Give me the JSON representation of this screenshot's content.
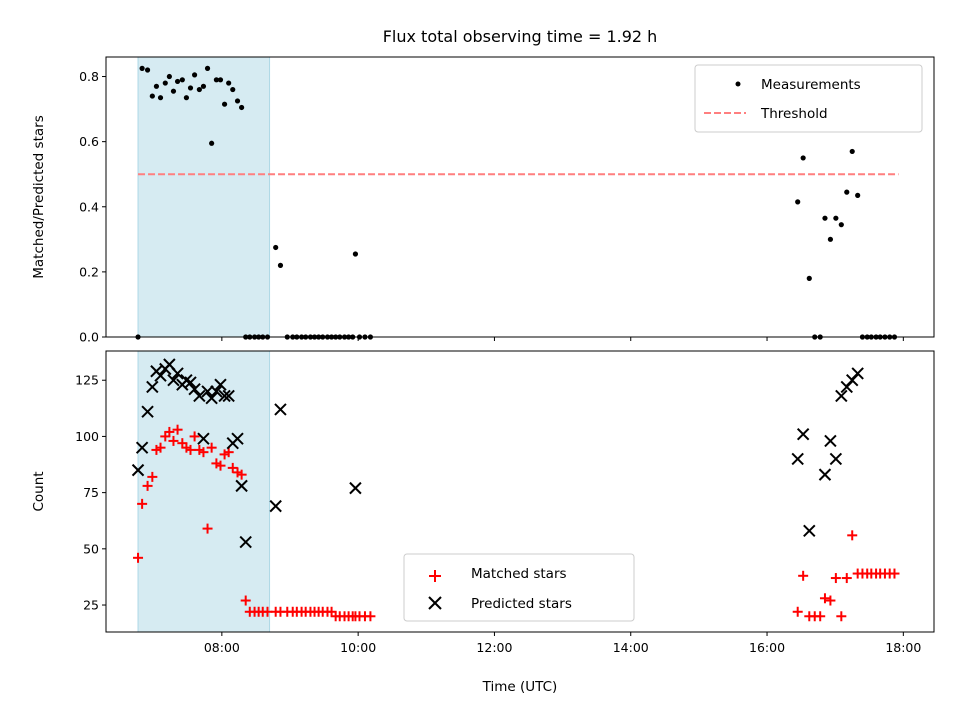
{
  "chart_data": {
    "title": "Flux total observing time = 1.92 h",
    "xlabel": "Time (UTC)",
    "x_ticks": [
      "08:00",
      "10:00",
      "12:00",
      "14:00",
      "16:00",
      "18:00"
    ],
    "x_unit": "hours (UTC)",
    "xlim": [
      6.3,
      18.45
    ],
    "highlight_span": {
      "x0": 6.77,
      "x1": 8.7,
      "color": "#add8e6"
    },
    "panels": [
      {
        "type": "scatter",
        "ylabel": "Matched/Predicted stars",
        "ylim": [
          0,
          0.86
        ],
        "y_ticks": [
          0.0,
          0.2,
          0.4,
          0.6,
          0.8
        ],
        "y_tick_labels": [
          "0.0",
          "0.2",
          "0.4",
          "0.6",
          "0.8"
        ],
        "legend_position": "top-right",
        "series": [
          {
            "name": "Measurements",
            "marker": "dot",
            "color": "#000000",
            "x": [
              6.77,
              6.83,
              6.91,
              6.98,
              7.04,
              7.1,
              7.17,
              7.23,
              7.29,
              7.35,
              7.42,
              7.48,
              7.54,
              7.6,
              7.67,
              7.73,
              7.79,
              7.85,
              7.92,
              7.98,
              8.04,
              8.1,
              8.16,
              8.23,
              8.29,
              8.35,
              8.41,
              8.48,
              8.54,
              8.6,
              8.67,
              8.79,
              8.86,
              8.96,
              9.04,
              9.1,
              9.17,
              9.23,
              9.3,
              9.36,
              9.42,
              9.48,
              9.55,
              9.61,
              9.67,
              9.73,
              9.8,
              9.86,
              9.92,
              9.96,
              10.02,
              10.1,
              10.18,
              16.45,
              16.53,
              16.62,
              16.7,
              16.78,
              16.85,
              16.93,
              17.01,
              17.09,
              17.17,
              17.25,
              17.33,
              17.4,
              17.47,
              17.53,
              17.6,
              17.66,
              17.73,
              17.8,
              17.87
            ],
            "y": [
              0.0,
              0.825,
              0.82,
              0.74,
              0.77,
              0.735,
              0.78,
              0.8,
              0.755,
              0.785,
              0.79,
              0.735,
              0.765,
              0.805,
              0.76,
              0.77,
              0.825,
              0.595,
              0.79,
              0.79,
              0.715,
              0.78,
              0.76,
              0.725,
              0.705,
              0.0,
              0.0,
              0.0,
              0.0,
              0.0,
              0.0,
              0.275,
              0.22,
              0.0,
              0.0,
              0.0,
              0.0,
              0.0,
              0.0,
              0.0,
              0.0,
              0.0,
              0.0,
              0.0,
              0.0,
              0.0,
              0.0,
              0.0,
              0.0,
              0.255,
              0.0,
              0.0,
              0.0,
              0.415,
              0.55,
              0.18,
              0.0,
              0.0,
              0.365,
              0.3,
              0.365,
              0.345,
              0.445,
              0.57,
              0.435,
              0.0,
              0.0,
              0.0,
              0.0,
              0.0,
              0.0,
              0.0,
              0.0
            ]
          }
        ],
        "threshold": {
          "name": "Threshold",
          "y": 0.5,
          "x0": 6.77,
          "x1": 17.93,
          "color": "#ff7f7f"
        }
      },
      {
        "type": "scatter",
        "ylabel": "Count",
        "ylim": [
          13,
          138
        ],
        "y_ticks": [
          25,
          50,
          75,
          100,
          125
        ],
        "y_tick_labels": [
          "25",
          "50",
          "75",
          "100",
          "125"
        ],
        "legend_position": "bottom-center",
        "series": [
          {
            "name": "Matched stars",
            "marker": "plus",
            "color": "#ff0000",
            "x": [
              6.77,
              6.83,
              6.91,
              6.98,
              7.04,
              7.1,
              7.17,
              7.23,
              7.29,
              7.35,
              7.42,
              7.48,
              7.54,
              7.6,
              7.67,
              7.73,
              7.79,
              7.85,
              7.92,
              7.98,
              8.04,
              8.1,
              8.16,
              8.23,
              8.29,
              8.35,
              8.41,
              8.48,
              8.54,
              8.6,
              8.67,
              8.79,
              8.86,
              8.96,
              9.04,
              9.1,
              9.17,
              9.23,
              9.3,
              9.36,
              9.42,
              9.48,
              9.55,
              9.61,
              9.67,
              9.73,
              9.8,
              9.86,
              9.92,
              9.96,
              10.02,
              10.1,
              10.18,
              16.45,
              16.53,
              16.62,
              16.7,
              16.78,
              16.85,
              16.93,
              17.01,
              17.09,
              17.17,
              17.25,
              17.33,
              17.4,
              17.47,
              17.53,
              17.6,
              17.66,
              17.73,
              17.8,
              17.87
            ],
            "y": [
              46,
              70,
              78,
              82,
              94,
              95,
              100,
              102,
              98,
              103,
              97,
              95,
              94,
              100,
              94,
              93,
              59,
              95,
              88,
              87,
              92,
              93,
              86,
              84,
              83,
              27,
              22,
              22,
              22,
              22,
              22,
              22,
              22,
              22,
              22,
              22,
              22,
              22,
              22,
              22,
              22,
              22,
              22,
              22,
              20,
              20,
              20,
              20,
              20,
              20,
              20,
              20,
              20,
              22,
              38,
              20,
              20,
              20,
              28,
              27,
              37,
              20,
              37,
              56,
              39,
              39,
              39,
              39,
              39,
              39,
              39,
              39,
              39
            ]
          },
          {
            "name": "Predicted stars",
            "marker": "x",
            "color": "#000000",
            "x": [
              6.77,
              6.83,
              6.91,
              6.98,
              7.04,
              7.1,
              7.17,
              7.23,
              7.29,
              7.35,
              7.42,
              7.48,
              7.54,
              7.6,
              7.67,
              7.73,
              7.79,
              7.85,
              7.92,
              7.98,
              8.04,
              8.1,
              8.16,
              8.23,
              8.29,
              8.35,
              8.79,
              8.86,
              9.96,
              16.45,
              16.53,
              16.62,
              16.85,
              16.93,
              17.01,
              17.09,
              17.17,
              17.25,
              17.33
            ],
            "y": [
              85,
              95,
              111,
              122,
              129,
              127,
              130,
              132,
              125,
              128,
              123,
              125,
              124,
              121,
              118,
              99,
              120,
              117,
              120,
              123,
              118,
              118,
              97,
              99,
              78,
              53,
              69,
              112,
              77,
              90,
              101,
              58,
              83,
              98,
              90,
              118,
              122,
              125,
              128
            ]
          }
        ]
      }
    ]
  }
}
